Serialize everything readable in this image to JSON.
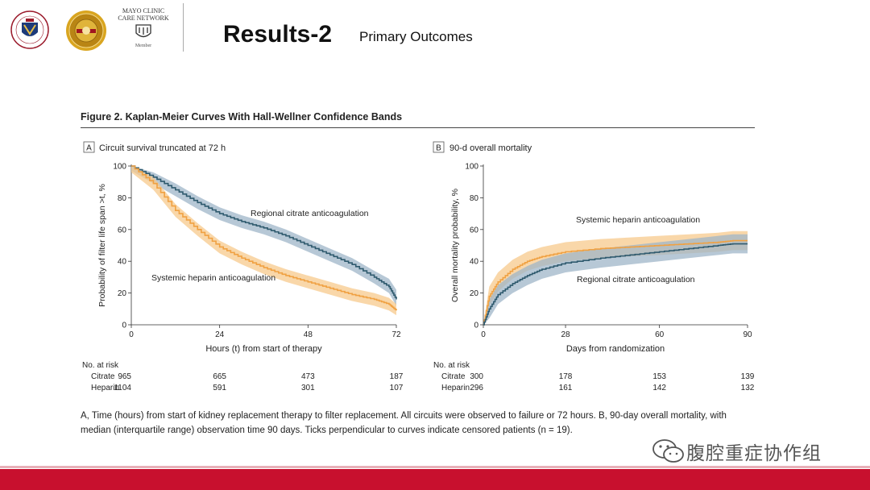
{
  "slide": {
    "title": "Results-2",
    "subtitle": "Primary Outcomes",
    "mayo_line1": "MAYO CLINIC",
    "mayo_line2": "CARE NETWORK",
    "mayo_member": "Member",
    "watermark": "腹腔重症协作组"
  },
  "figure": {
    "title": "Figure 2. Kaplan-Meier Curves With Hall-Wellner Confidence Bands",
    "caption": "A, Time (hours) from start of kidney replacement therapy to filter replacement. All circuits were observed to failure or 72 hours. B, 90-day overall mortality, with median (interquartile range) observation time 90 days. Ticks perpendicular to curves indicate censored patients (n = 19)."
  },
  "colors": {
    "citrate": "#2f5a6e",
    "citrate_band": "#9fb6c8",
    "heparin": "#f0a142",
    "heparin_band": "#f7c98c",
    "footer": "#c8102e"
  },
  "chart_data": [
    {
      "type": "line",
      "panel_letter": "A",
      "panel_title": "Circuit survival truncated at 72 h",
      "xlabel": "Hours (t) from start of therapy",
      "ylabel": "Probability of filter life span >t, %",
      "xlim": [
        0,
        72
      ],
      "ylim": [
        0,
        100
      ],
      "xticks": [
        0,
        24,
        48,
        72
      ],
      "yticks": [
        0,
        20,
        40,
        60,
        80,
        100
      ],
      "series": [
        {
          "name": "Regional citrate anticoagulation",
          "key": "citrate",
          "x": [
            0,
            6,
            12,
            18,
            24,
            30,
            36,
            42,
            48,
            54,
            60,
            66,
            70,
            72
          ],
          "y": [
            100,
            93,
            85,
            77,
            70,
            65,
            61,
            56,
            50,
            44,
            38,
            30,
            24,
            16
          ],
          "lower": [
            97,
            89,
            81,
            73,
            66,
            61,
            57,
            52,
            46,
            40,
            34,
            26,
            20,
            12
          ],
          "upper": [
            100,
            96,
            89,
            81,
            74,
            69,
            65,
            60,
            54,
            48,
            42,
            34,
            29,
            22
          ]
        },
        {
          "name": "Systemic heparin anticoagulation",
          "key": "heparin",
          "x": [
            0,
            6,
            12,
            18,
            24,
            30,
            36,
            42,
            48,
            54,
            60,
            66,
            70,
            72
          ],
          "y": [
            100,
            89,
            72,
            60,
            49,
            42,
            36,
            31,
            27,
            23,
            19,
            16,
            13,
            9
          ],
          "lower": [
            96,
            85,
            68,
            56,
            45,
            38,
            32,
            27,
            23,
            19,
            15,
            12,
            9,
            6
          ],
          "upper": [
            100,
            93,
            76,
            64,
            53,
            46,
            40,
            35,
            31,
            27,
            23,
            20,
            17,
            13
          ]
        }
      ],
      "at_risk": {
        "label": "No. at risk",
        "rows": [
          {
            "name": "Citrate",
            "values": [
              "965",
              "665",
              "473",
              "187"
            ]
          },
          {
            "name": "Heparin",
            "values": [
              "1104",
              "591",
              "301",
              "107"
            ]
          }
        ]
      }
    },
    {
      "type": "line",
      "panel_letter": "B",
      "panel_title": "90-d overall mortality",
      "xlabel": "Days from randomization",
      "ylabel": "Overall mortality probability, %",
      "xlim": [
        0,
        90
      ],
      "ylim": [
        0,
        100
      ],
      "xticks": [
        0,
        28,
        60,
        90
      ],
      "yticks": [
        0,
        20,
        40,
        60,
        80,
        100
      ],
      "series": [
        {
          "name": "Systemic heparin anticoagulation",
          "key": "heparin",
          "x": [
            0,
            2,
            5,
            10,
            15,
            20,
            28,
            40,
            50,
            60,
            70,
            80,
            85,
            90
          ],
          "y": [
            0,
            18,
            27,
            35,
            40,
            43,
            46,
            48,
            49,
            50,
            51,
            52,
            53,
            53
          ],
          "lower": [
            0,
            12,
            21,
            29,
            34,
            37,
            40,
            42,
            43,
            44,
            45,
            46,
            47,
            47
          ],
          "upper": [
            0,
            24,
            33,
            41,
            46,
            49,
            52,
            54,
            55,
            56,
            57,
            58,
            59,
            59
          ]
        },
        {
          "name": "Regional citrate anticoagulation",
          "key": "citrate",
          "x": [
            0,
            2,
            5,
            10,
            15,
            20,
            28,
            40,
            50,
            60,
            70,
            80,
            85,
            90
          ],
          "y": [
            0,
            10,
            19,
            26,
            31,
            35,
            39,
            42,
            44,
            46,
            48,
            50,
            51,
            51
          ],
          "lower": [
            0,
            4,
            13,
            20,
            25,
            29,
            33,
            36,
            38,
            40,
            42,
            44,
            45,
            45
          ],
          "upper": [
            0,
            16,
            25,
            32,
            37,
            41,
            45,
            48,
            50,
            52,
            54,
            56,
            57,
            57
          ]
        }
      ],
      "at_risk": {
        "label": "No. at risk",
        "rows": [
          {
            "name": "Citrate",
            "values": [
              "300",
              "178",
              "153",
              "139"
            ]
          },
          {
            "name": "Heparin",
            "values": [
              "296",
              "161",
              "142",
              "132"
            ]
          }
        ]
      }
    }
  ]
}
